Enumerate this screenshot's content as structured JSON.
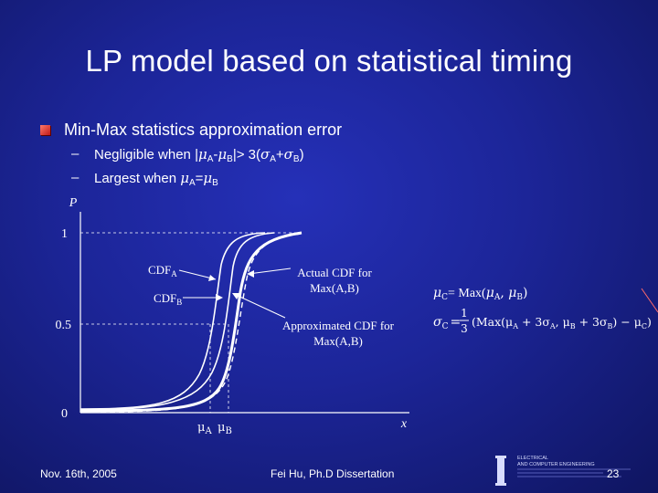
{
  "title": "LP model based on statistical timing",
  "bullet": {
    "main": "Min-Max statistics approximation error",
    "sub1": {
      "prefix": "Negligible when |",
      "mu": "μ",
      "a": "A",
      "minus": "-",
      "b": "B",
      "mid": "|> 3(",
      "sigma": "σ",
      "plus": "+",
      "close": ")"
    },
    "sub2": {
      "prefix": "Largest when ",
      "mu": "μ",
      "a": "A",
      "eq": "=",
      "b": "B"
    },
    "dash": "–"
  },
  "figure": {
    "y_axis_label": "P",
    "x_axis_label": "x",
    "y_ticks": [
      "1",
      "0.5",
      "0"
    ],
    "x_ticks": [
      "μ",
      "μ"
    ],
    "x_tick_subs": [
      "A",
      "B"
    ],
    "cdf_a": "CDF",
    "cdf_a_sub": "A",
    "cdf_b": "CDF",
    "cdf_b_sub": "B",
    "actual_l1": "Actual CDF for",
    "actual_l2": "Max(A,B)",
    "approx_l1": "Approximated CDF for",
    "approx_l2": "Max(A,B)"
  },
  "formulas": {
    "line1": "μC = Max(μA , μB)",
    "f1_lhs": "μ",
    "f1_lhs_sub": "C",
    "f1_rhs": "= Max(",
    "f1_a": "μ",
    "f1_a_sub": "A",
    "f1_comma": ", ",
    "f1_b": "μ",
    "f1_b_sub": "B",
    "f1_close": ")",
    "f2_lhs": "σ",
    "f2_lhs_sub": "C",
    "f2_eq": "=",
    "f2_num": "1",
    "f2_den": "3",
    "f2_body": "(Max(μ",
    "f2_body_a": "A",
    "f2_body_2": " + 3σ",
    "f2_body_2a": "A",
    "f2_body_3": ", μ",
    "f2_body_3b": "B",
    "f2_body_4": " + 3σ",
    "f2_body_4b": "B",
    "f2_body_5": ") − μ",
    "f2_body_5c": "C",
    "f2_body_6": ")"
  },
  "footer": {
    "date": "Nov. 16th, 2005",
    "center": "Fei Hu, Ph.D Dissertation",
    "page": "23",
    "logo_l1": "ELECTRICAL",
    "logo_l2": "AND COMPUTER ENGINEERING"
  },
  "colors": {
    "background": "#1c2598",
    "text": "#ffffff",
    "bullet_square": "#d02020",
    "figure_bg": "#ffffff"
  }
}
